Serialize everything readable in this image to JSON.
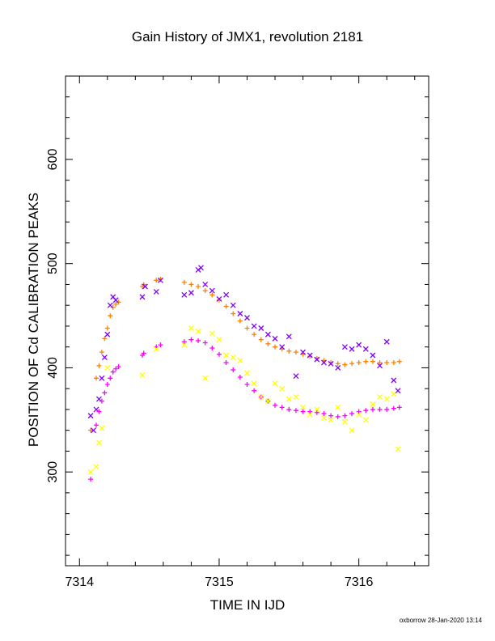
{
  "chart_data": {
    "type": "scatter",
    "title": "Gain History of JMX1, revolution 2181",
    "xlabel": "TIME IN IJD",
    "ylabel": "POSITION OF Cd CALIBRATION PEAKS",
    "xlim": [
      7313.9,
      7316.5
    ],
    "ylim": [
      210,
      680
    ],
    "x_ticks": [
      7314,
      7315,
      7316
    ],
    "y_ticks": [
      300,
      400,
      500,
      600
    ],
    "x_tick_labels": [
      "7314",
      "7315",
      "7316"
    ],
    "y_tick_labels": [
      "300",
      "400",
      "500",
      "600"
    ],
    "grid": false,
    "series": [
      {
        "marker": "plus",
        "color": "#ff8000",
        "x": [
          7314.08,
          7314.12,
          7314.14,
          7314.16,
          7314.18,
          7314.2,
          7314.22,
          7314.24,
          7314.26,
          7314.28,
          7314.45,
          7314.46,
          7314.55,
          7314.58,
          7314.75,
          7314.8,
          7314.85,
          7314.9,
          7314.95,
          7315.0,
          7315.05,
          7315.1,
          7315.15,
          7315.2,
          7315.25,
          7315.3,
          7315.35,
          7315.4,
          7315.45,
          7315.5,
          7315.55,
          7315.6,
          7315.65,
          7315.7,
          7315.75,
          7315.8,
          7315.85,
          7315.9,
          7315.95,
          7316.0,
          7316.05,
          7316.1,
          7316.15,
          7316.2,
          7316.25,
          7316.29
        ],
        "y": [
          340,
          390,
          402,
          415,
          428,
          438,
          450,
          458,
          461,
          463,
          478,
          480,
          484,
          485,
          482,
          480,
          478,
          474,
          470,
          465,
          459,
          452,
          445,
          438,
          432,
          427,
          423,
          420,
          418,
          416,
          415,
          413,
          411,
          409,
          407,
          405,
          404,
          403,
          404,
          405,
          406,
          406,
          405,
          405,
          405,
          406
        ]
      },
      {
        "marker": "cross",
        "color": "#8000ff",
        "x": [
          7314.08,
          7314.1,
          7314.12,
          7314.14,
          7314.16,
          7314.18,
          7314.2,
          7314.22,
          7314.24,
          7314.26,
          7314.45,
          7314.47,
          7314.55,
          7314.58,
          7314.75,
          7314.8,
          7314.85,
          7314.87,
          7314.9,
          7314.95,
          7315.0,
          7315.05,
          7315.1,
          7315.15,
          7315.2,
          7315.25,
          7315.3,
          7315.35,
          7315.4,
          7315.45,
          7315.5,
          7315.55,
          7315.6,
          7315.65,
          7315.7,
          7315.75,
          7315.8,
          7315.85,
          7315.9,
          7315.95,
          7316.0,
          7316.05,
          7316.1,
          7316.15,
          7316.2,
          7316.25,
          7316.28
        ],
        "y": [
          354,
          340,
          360,
          370,
          390,
          410,
          432,
          460,
          468,
          465,
          468,
          478,
          473,
          484,
          470,
          472,
          494,
          496,
          480,
          474,
          466,
          470,
          460,
          452,
          448,
          440,
          438,
          432,
          428,
          420,
          430,
          392,
          415,
          412,
          408,
          405,
          404,
          400,
          420,
          418,
          422,
          418,
          412,
          402,
          425,
          388,
          378
        ]
      },
      {
        "marker": "plus",
        "color": "#ff00ff",
        "x": [
          7314.08,
          7314.12,
          7314.14,
          7314.16,
          7314.18,
          7314.2,
          7314.22,
          7314.24,
          7314.26,
          7314.28,
          7314.45,
          7314.46,
          7314.55,
          7314.58,
          7314.75,
          7314.8,
          7314.85,
          7314.9,
          7314.95,
          7315.0,
          7315.05,
          7315.1,
          7315.15,
          7315.2,
          7315.25,
          7315.3,
          7315.35,
          7315.4,
          7315.45,
          7315.5,
          7315.55,
          7315.6,
          7315.65,
          7315.7,
          7315.75,
          7315.8,
          7315.85,
          7315.9,
          7315.95,
          7316.0,
          7316.05,
          7316.1,
          7316.15,
          7316.2,
          7316.25,
          7316.29
        ],
        "y": [
          293,
          345,
          358,
          368,
          376,
          384,
          390,
          396,
          399,
          401,
          412,
          414,
          420,
          422,
          425,
          427,
          426,
          424,
          419,
          413,
          405,
          398,
          391,
          384,
          378,
          372,
          368,
          364,
          362,
          360,
          359,
          358,
          358,
          357,
          356,
          354,
          353,
          354,
          356,
          358,
          359,
          360,
          360,
          360,
          361,
          362
        ]
      },
      {
        "marker": "cross",
        "color": "#ffff00",
        "x": [
          7314.08,
          7314.12,
          7314.14,
          7314.16,
          7314.2,
          7314.45,
          7314.55,
          7314.75,
          7314.8,
          7314.85,
          7314.9,
          7314.95,
          7315.0,
          7315.05,
          7315.1,
          7315.15,
          7315.2,
          7315.25,
          7315.3,
          7315.35,
          7315.4,
          7315.45,
          7315.5,
          7315.55,
          7315.6,
          7315.65,
          7315.7,
          7315.75,
          7315.8,
          7315.85,
          7315.9,
          7315.95,
          7316.0,
          7316.05,
          7316.1,
          7316.15,
          7316.2,
          7316.25,
          7316.28
        ],
        "y": [
          300,
          305,
          328,
          342,
          400,
          393,
          418,
          422,
          438,
          435,
          390,
          433,
          427,
          412,
          410,
          407,
          395,
          385,
          372,
          368,
          385,
          380,
          370,
          372,
          362,
          355,
          360,
          352,
          350,
          362,
          348,
          340,
          355,
          350,
          365,
          372,
          370,
          375,
          322
        ]
      }
    ]
  },
  "footer": {
    "note": "oxborrow 28-Jan-2020 13:14"
  }
}
